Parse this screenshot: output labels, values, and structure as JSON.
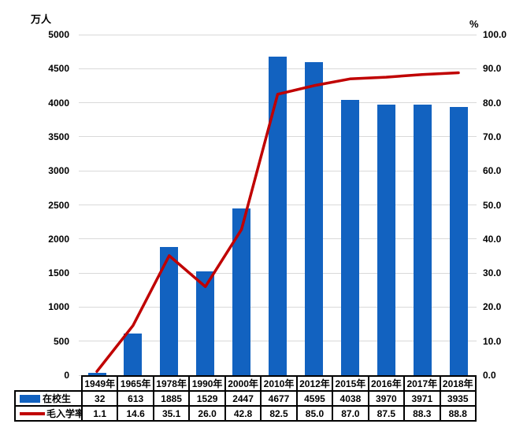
{
  "chart_data": {
    "type": "bar+line",
    "categories": [
      "1949年",
      "1965年",
      "1978年",
      "1990年",
      "2000年",
      "2010年",
      "2012年",
      "2015年",
      "2016年",
      "2017年",
      "2018年"
    ],
    "series": [
      {
        "name": "在校生",
        "type": "bar",
        "axis": "left",
        "color": "#1262C0",
        "values": [
          32,
          613,
          1885,
          1529,
          2447,
          4677,
          4595,
          4038,
          3970,
          3971,
          3935
        ]
      },
      {
        "name": "毛入学率",
        "type": "line",
        "axis": "right",
        "color": "#C00000",
        "values": [
          1.1,
          14.6,
          35.1,
          26.0,
          42.8,
          82.5,
          85.0,
          87.0,
          87.5,
          88.3,
          88.8
        ]
      }
    ],
    "left_axis": {
      "unit": "万人",
      "min": 0,
      "max": 5000,
      "step": 500
    },
    "right_axis": {
      "unit": "%",
      "min": 0,
      "max": 100,
      "step": 10,
      "decimals": 1
    },
    "grid": true,
    "gridline_color": "#D9D9D9",
    "legend_position": "table-left"
  }
}
